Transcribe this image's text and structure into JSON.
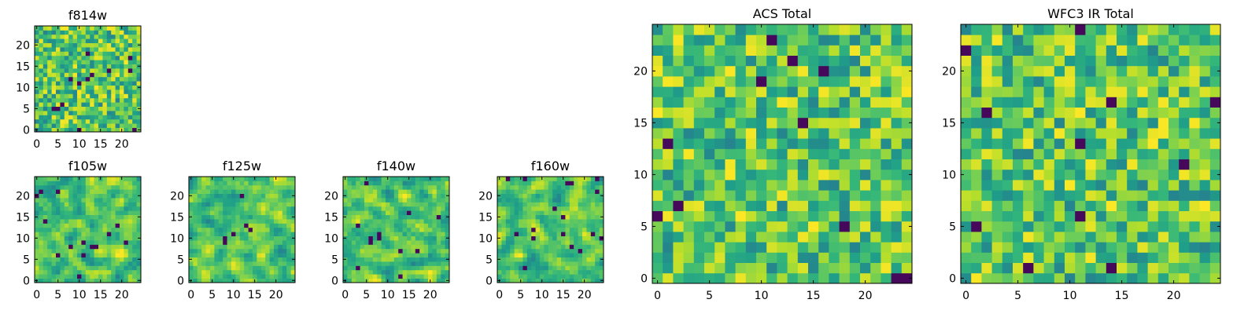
{
  "chart_data": [
    {
      "id": "f814w",
      "type": "heatmap",
      "title": "f814w",
      "grid_size": 25,
      "colormap": "viridis",
      "xlim": [
        0,
        25
      ],
      "ylim": [
        0,
        25
      ],
      "xticks": [
        0,
        5,
        10,
        15,
        20
      ],
      "yticks": [
        0,
        5,
        10,
        15,
        20
      ],
      "grid": false
    },
    {
      "id": "f105w",
      "type": "heatmap",
      "title": "f105w",
      "grid_size": 25,
      "colormap": "viridis",
      "xlim": [
        0,
        25
      ],
      "ylim": [
        0,
        25
      ],
      "xticks": [
        0,
        5,
        10,
        15,
        20
      ],
      "yticks": [
        0,
        5,
        10,
        15,
        20
      ],
      "grid": false
    },
    {
      "id": "f125w",
      "type": "heatmap",
      "title": "f125w",
      "grid_size": 25,
      "colormap": "viridis",
      "xlim": [
        0,
        25
      ],
      "ylim": [
        0,
        25
      ],
      "xticks": [
        0,
        5,
        10,
        15,
        20
      ],
      "yticks": [
        0,
        5,
        10,
        15,
        20
      ],
      "grid": false
    },
    {
      "id": "f140w",
      "type": "heatmap",
      "title": "f140w",
      "grid_size": 25,
      "colormap": "viridis",
      "xlim": [
        0,
        25
      ],
      "ylim": [
        0,
        25
      ],
      "xticks": [
        0,
        5,
        10,
        15,
        20
      ],
      "yticks": [
        0,
        5,
        10,
        15,
        20
      ],
      "grid": false
    },
    {
      "id": "f160w",
      "type": "heatmap",
      "title": "f160w",
      "grid_size": 25,
      "colormap": "viridis",
      "xlim": [
        0,
        25
      ],
      "ylim": [
        0,
        25
      ],
      "xticks": [
        0,
        5,
        10,
        15,
        20
      ],
      "yticks": [
        0,
        5,
        10,
        15,
        20
      ],
      "grid": false
    },
    {
      "id": "acs-total",
      "type": "heatmap",
      "title": "ACS Total",
      "grid_size": 25,
      "colormap": "viridis",
      "xlim": [
        0,
        25
      ],
      "ylim": [
        0,
        25
      ],
      "xticks": [
        0,
        5,
        10,
        15,
        20
      ],
      "yticks": [
        0,
        5,
        10,
        15,
        20
      ],
      "grid": false
    },
    {
      "id": "wfc3-ir-total",
      "type": "heatmap",
      "title": "WFC3 IR Total",
      "grid_size": 25,
      "colormap": "viridis",
      "xlim": [
        0,
        25
      ],
      "ylim": [
        0,
        25
      ],
      "xticks": [
        0,
        5,
        10,
        15,
        20
      ],
      "yticks": [
        0,
        5,
        10,
        15,
        20
      ],
      "grid": false
    }
  ],
  "colors": {
    "axis": "#000000",
    "background": "#ffffff"
  }
}
